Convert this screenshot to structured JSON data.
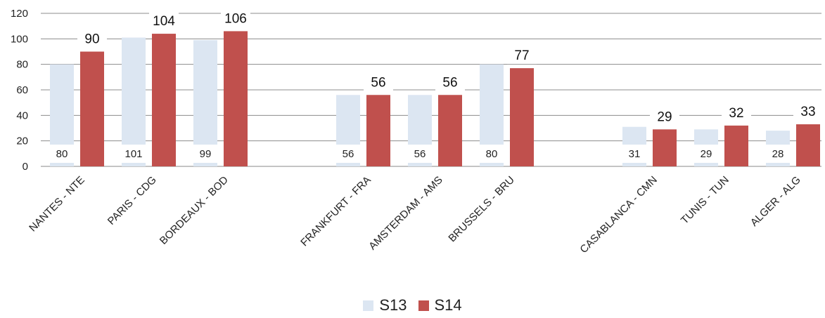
{
  "chart_data": {
    "type": "bar",
    "categories": [
      "NANTES - NTE",
      "PARIS - CDG",
      "BORDEAUX - BOD",
      "FRANKFURT - FRA",
      "AMSTERDAM - AMS",
      "BRUSSELS - BRU",
      "CASABLANCA - CMN",
      "TUNIS - TUN",
      "ALGER - ALG"
    ],
    "series": [
      {
        "name": "S13",
        "color": "#dce6f2",
        "values": [
          80,
          101,
          99,
          56,
          56,
          80,
          31,
          29,
          28
        ]
      },
      {
        "name": "S14",
        "color": "#c0504d",
        "values": [
          90,
          104,
          106,
          56,
          56,
          77,
          29,
          32,
          33
        ]
      }
    ],
    "ylim": [
      0,
      120
    ],
    "yticks": [
      0,
      20,
      40,
      60,
      80,
      100,
      120
    ],
    "grid": true,
    "legend_position": "bottom",
    "title": "",
    "xlabel": "",
    "ylabel": ""
  }
}
